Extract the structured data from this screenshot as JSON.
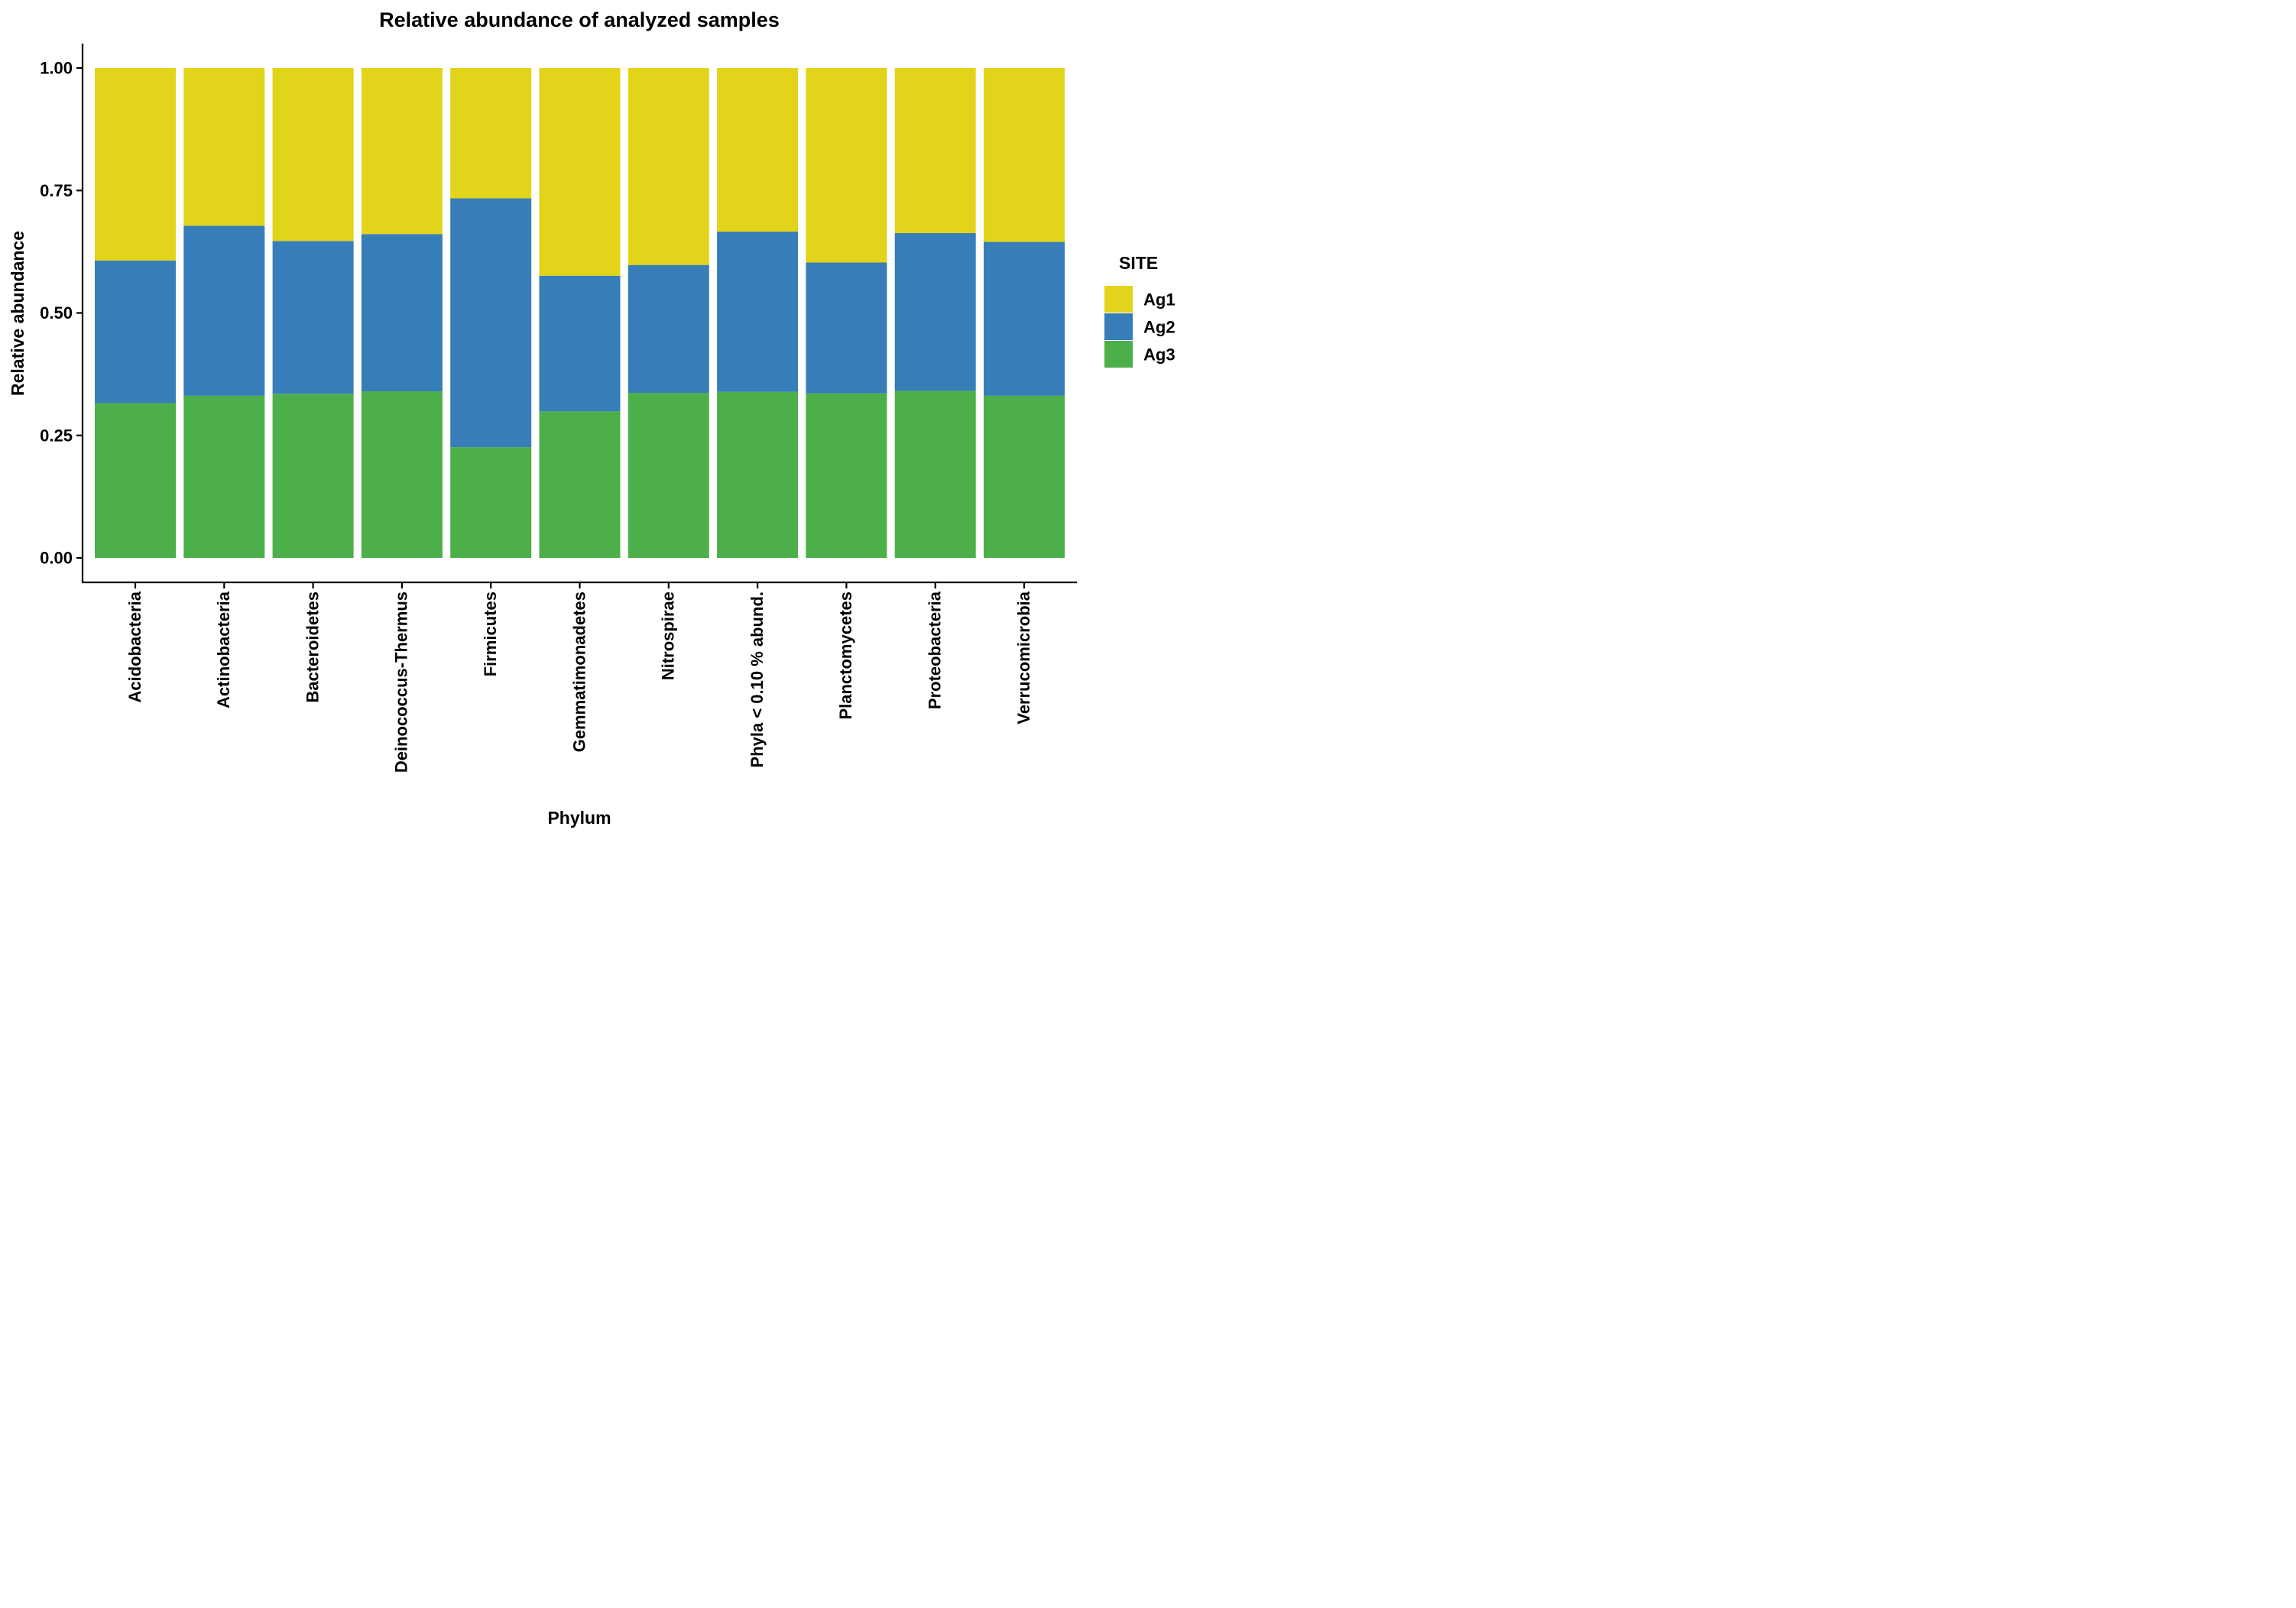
{
  "chart_data": {
    "type": "bar",
    "stacked": true,
    "title": "Relative abundance of analyzed samples",
    "xlabel": "Phylum",
    "ylabel": "Relative abundance",
    "ylim": [
      0,
      1
    ],
    "yticks": [
      "0.00",
      "0.25",
      "0.50",
      "0.75",
      "1.00"
    ],
    "categories": [
      "Acidobacteria",
      "Actinobacteria",
      "Bacteroidetes",
      "Deinococcus-Thermus",
      "Firmicutes",
      "Gemmatimonadetes",
      "Nitrospirae",
      "Phyla < 0.10 % abund.",
      "Planctomycetes",
      "Proteobacteria",
      "Verrucomicrobia"
    ],
    "series": [
      {
        "name": "Ag3",
        "color": "#4DAF4A",
        "values": [
          0.316,
          0.331,
          0.335,
          0.34,
          0.226,
          0.299,
          0.337,
          0.339,
          0.336,
          0.341,
          0.331
        ]
      },
      {
        "name": "Ag2",
        "color": "#377EB8",
        "values": [
          0.291,
          0.347,
          0.312,
          0.321,
          0.508,
          0.277,
          0.261,
          0.327,
          0.267,
          0.322,
          0.314
        ]
      },
      {
        "name": "Ag1",
        "color": "#E2D41A",
        "values": [
          0.393,
          0.322,
          0.353,
          0.339,
          0.266,
          0.424,
          0.402,
          0.334,
          0.397,
          0.337,
          0.355
        ]
      }
    ],
    "legend": {
      "title": "SITE",
      "position": "right",
      "items": [
        {
          "label": "Ag1",
          "color": "#E2D41A"
        },
        {
          "label": "Ag2",
          "color": "#377EB8"
        },
        {
          "label": "Ag3",
          "color": "#4DAF4A"
        }
      ]
    },
    "grid": false
  }
}
